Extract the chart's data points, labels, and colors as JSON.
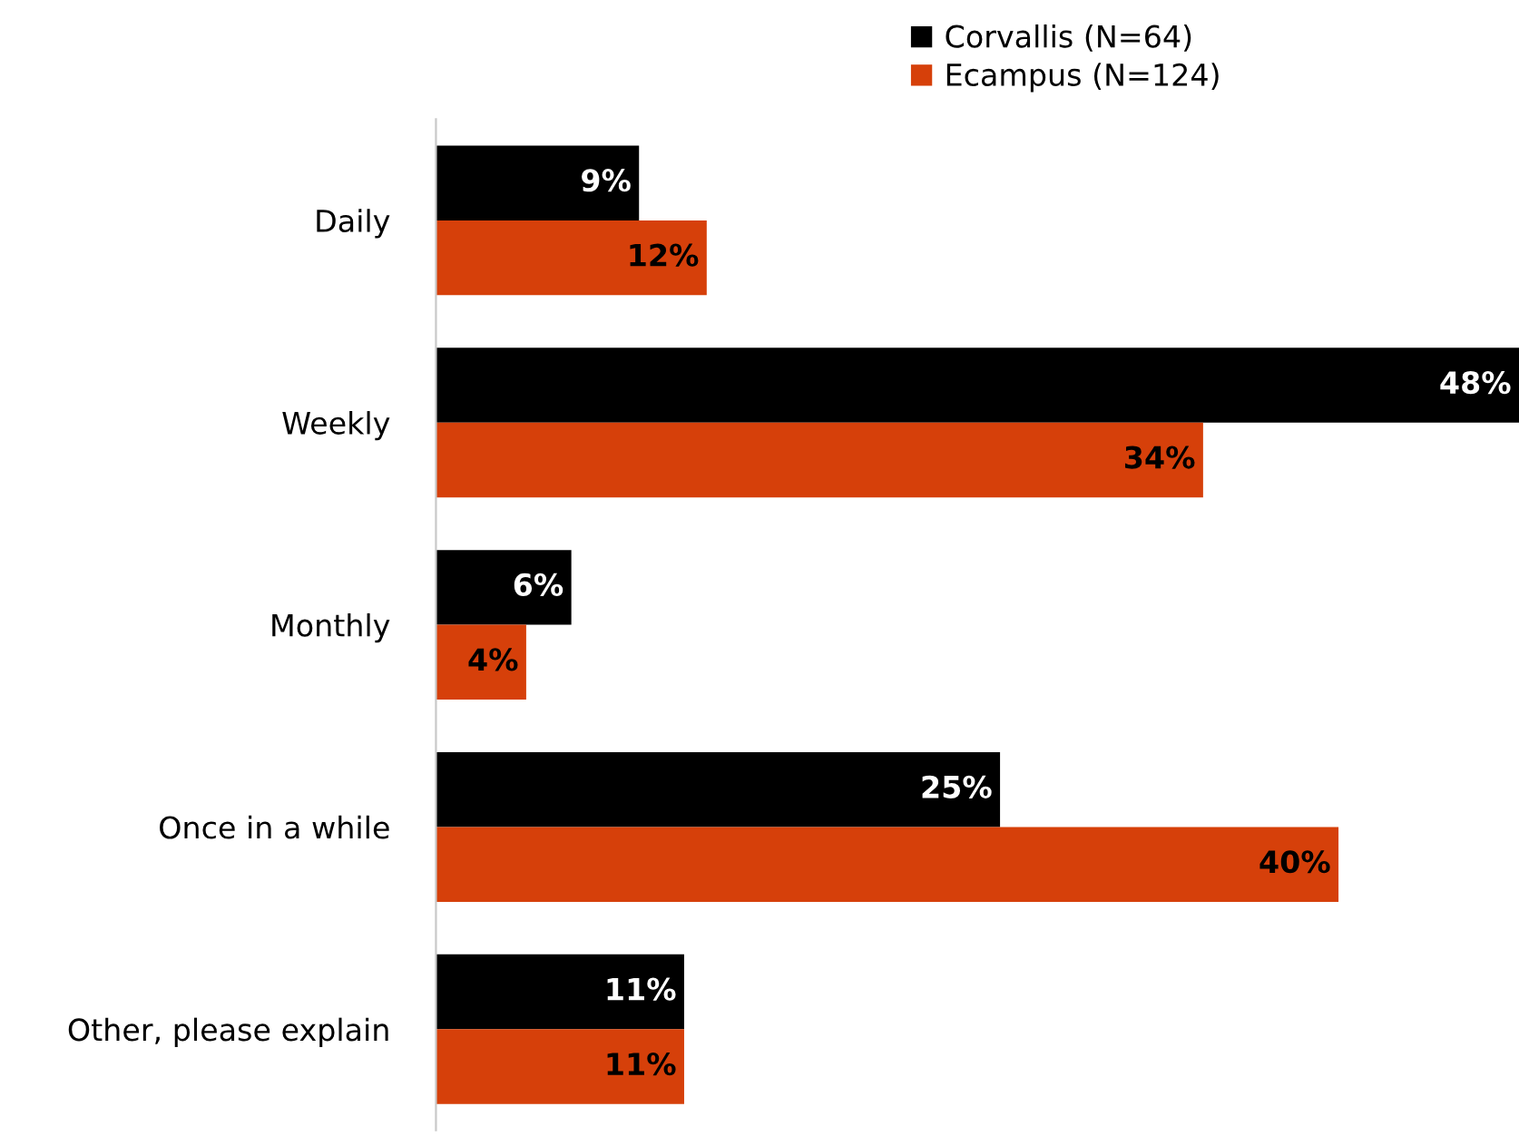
{
  "chart_data": {
    "type": "bar",
    "orientation": "horizontal",
    "legend": "top right",
    "grid": false,
    "categories": [
      "Daily",
      "Weekly",
      "Monthly",
      "Once in a while",
      "Other, please explain"
    ],
    "series": [
      {
        "name": "Corvallis (N=64)",
        "color": "#000000",
        "values": [
          9,
          48,
          6,
          25,
          11
        ],
        "value_labels": [
          "9%",
          "48%",
          "6%",
          "25%",
          "11%"
        ]
      },
      {
        "name": "Ecampus (N=124)",
        "color": "#d6400a",
        "values": [
          12,
          34,
          4,
          40,
          11
        ],
        "value_labels": [
          "12%",
          "34%",
          "4%",
          "40%",
          "11%"
        ]
      }
    ]
  }
}
